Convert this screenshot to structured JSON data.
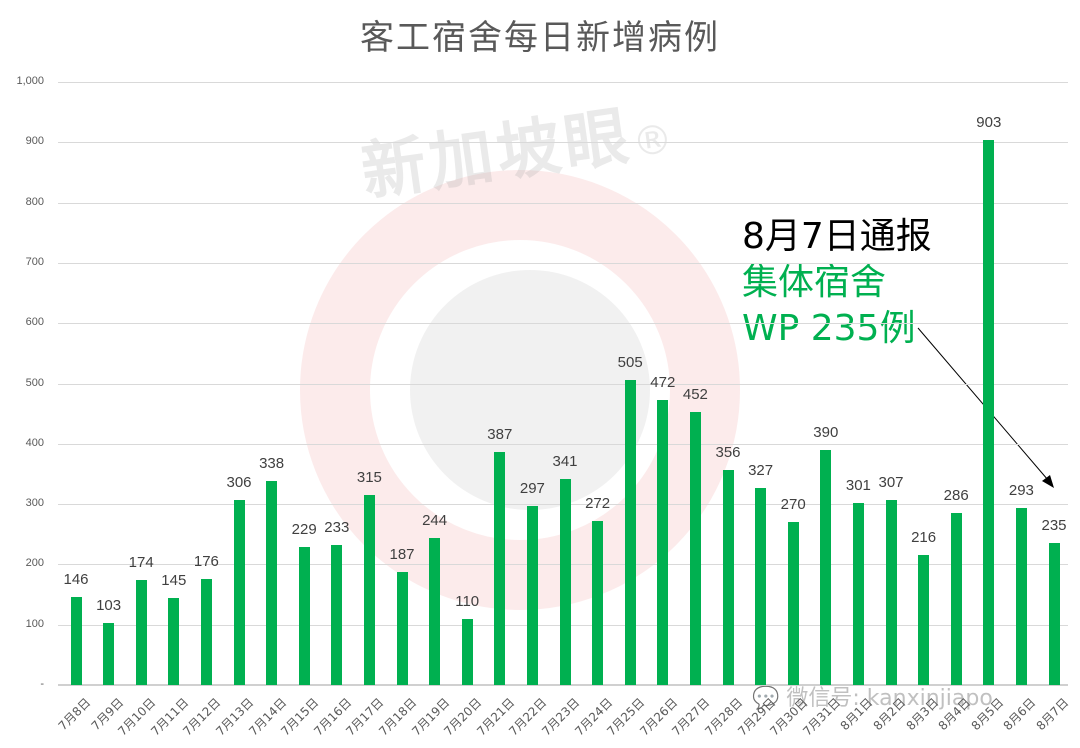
{
  "chart_data": {
    "type": "bar",
    "title": "客工宿舍每日新增病例",
    "xlabel": "",
    "ylabel": "",
    "ylim": [
      0,
      1000
    ],
    "yticks": [
      "-",
      "100",
      "200",
      "300",
      "400",
      "500",
      "600",
      "700",
      "800",
      "900",
      "1,000"
    ],
    "grid": true,
    "legend": "none",
    "color": "#00b050",
    "categories": [
      "7月8日",
      "7月9日",
      "7月10日",
      "7月11日",
      "7月12日",
      "7月13日",
      "7月14日",
      "7月15日",
      "7月16日",
      "7月17日",
      "7月18日",
      "7月19日",
      "7月20日",
      "7月21日",
      "7月22日",
      "7月23日",
      "7月24日",
      "7月25日",
      "7月26日",
      "7月27日",
      "7月28日",
      "7月29日",
      "7月30日",
      "7月31日",
      "8月1日",
      "8月2日",
      "8月3日",
      "8月4日",
      "8月5日",
      "8月6日",
      "8月7日"
    ],
    "values": [
      146,
      103,
      174,
      145,
      176,
      306,
      338,
      229,
      233,
      315,
      187,
      244,
      110,
      387,
      297,
      341,
      272,
      505,
      472,
      452,
      356,
      327,
      270,
      390,
      301,
      307,
      216,
      286,
      903,
      293,
      235
    ],
    "annotations": [
      {
        "lines": [
          "8月7日通报",
          "集体宿舍",
          "WP 235例"
        ],
        "colors": [
          "#000000",
          "#00b050",
          "#00b050"
        ],
        "arrow_to": "8月7日"
      }
    ]
  },
  "watermark": {
    "brand": "新加坡眼",
    "registered": "®",
    "wechat": "微信号: kanxinjiapo"
  }
}
